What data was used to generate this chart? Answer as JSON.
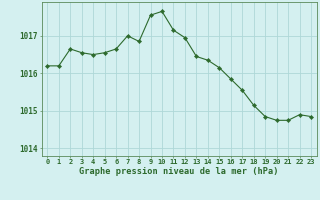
{
  "x": [
    0,
    1,
    2,
    3,
    4,
    5,
    6,
    7,
    8,
    9,
    10,
    11,
    12,
    13,
    14,
    15,
    16,
    17,
    18,
    19,
    20,
    21,
    22,
    23
  ],
  "y": [
    1016.2,
    1016.2,
    1016.65,
    1016.55,
    1016.5,
    1016.55,
    1016.65,
    1017.0,
    1016.85,
    1017.55,
    1017.65,
    1017.15,
    1016.95,
    1016.45,
    1016.35,
    1016.15,
    1015.85,
    1015.55,
    1015.15,
    1014.85,
    1014.75,
    1014.75,
    1014.9,
    1014.85
  ],
  "line_color": "#2d6a2d",
  "marker_color": "#2d6a2d",
  "bg_color": "#d4f0f0",
  "grid_color": "#aed8d8",
  "xlabel": "Graphe pression niveau de la mer (hPa)",
  "xlabel_color": "#2d6a2d",
  "tick_color": "#2d6a2d",
  "ylim": [
    1013.8,
    1017.9
  ],
  "yticks": [
    1014,
    1015,
    1016,
    1017
  ],
  "xticks": [
    0,
    1,
    2,
    3,
    4,
    5,
    6,
    7,
    8,
    9,
    10,
    11,
    12,
    13,
    14,
    15,
    16,
    17,
    18,
    19,
    20,
    21,
    22,
    23
  ],
  "spine_color": "#5a8a5a",
  "tick_fontsize": 5.0,
  "ytick_fontsize": 5.5,
  "xlabel_fontsize": 6.2
}
